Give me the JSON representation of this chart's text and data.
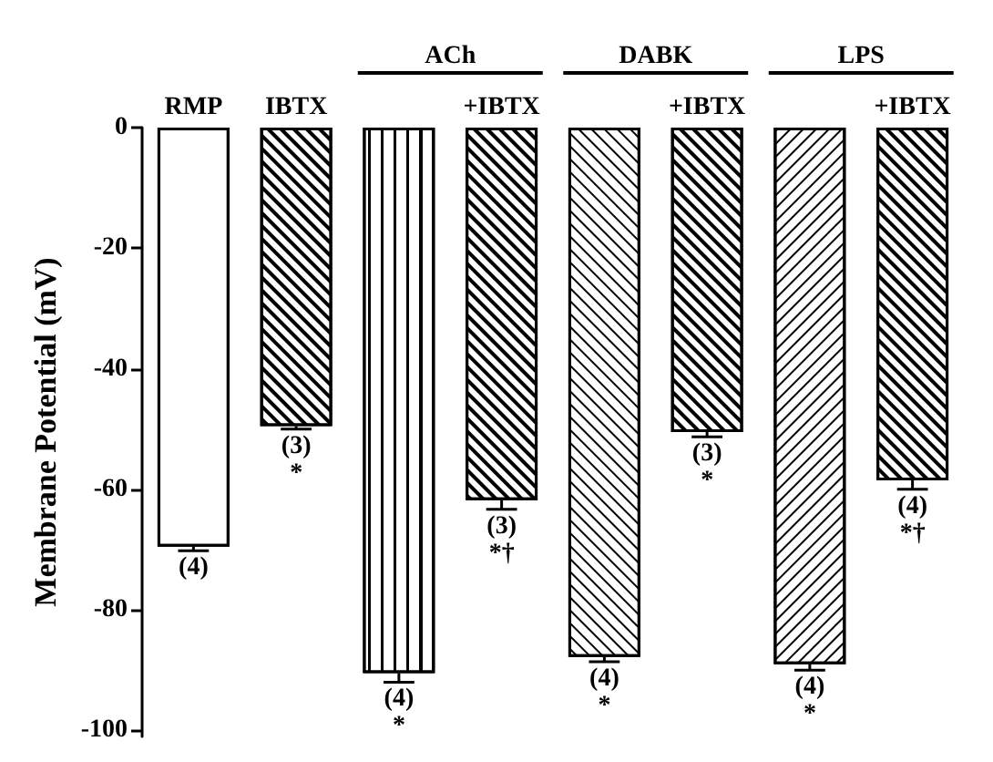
{
  "chart_data": {
    "type": "bar",
    "ylabel": "Membrane Potential (mV)",
    "categories": [
      "RMP",
      "IBTX",
      null,
      "+IBTX",
      null,
      "+IBTX",
      null,
      "+IBTX"
    ],
    "values": [
      -69.5,
      -49.5,
      -90.5,
      -61.8,
      -87.8,
      -50.5,
      -89,
      -58.5
    ],
    "errors": [
      0.7,
      0.5,
      1.5,
      1.5,
      0.8,
      0.8,
      1,
      1.5
    ],
    "colors": [
      "#ffffff",
      "#ffffff",
      "#ffffff",
      "#ffffff",
      "#ffffff",
      "#ffffff",
      "#ffffff",
      "#ffffff"
    ],
    "ylim": [
      -101,
      0
    ],
    "yticks": [
      0,
      -20,
      -40,
      -60,
      -80,
      -100
    ],
    "grid": false,
    "annotations": [
      "ACh",
      "DABK",
      "LPS",
      "(4)",
      "(3)\n*",
      "(4)\n*",
      "(3)\n*†",
      "(4)\n*",
      "(3)\n*",
      "(4)\n*",
      "(4)\n*†"
    ]
  }
}
